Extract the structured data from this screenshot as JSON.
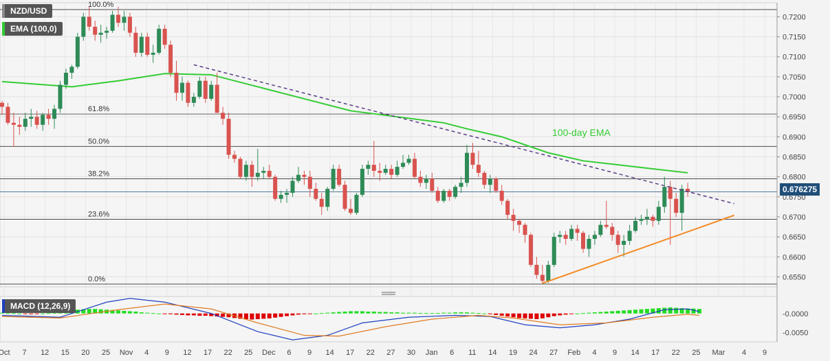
{
  "labels": {
    "pair": "NZD/USD",
    "ema_legend": "EMA (100,0)",
    "macd_legend": "MACD (12,26,9)",
    "ema_annotation": "100-day EMA",
    "last_price": "0.676275"
  },
  "colors": {
    "background": "#f3f3f3",
    "bull": "#2e8b57",
    "bear": "#d9534f",
    "ema": "#33cc33",
    "trendline_down": "#5a3e85",
    "trendline_up": "#f28c28",
    "fib": "#333333",
    "macd_line": "#1f3fbf",
    "signal_line": "#e07b20",
    "hist_pos": "#22dd22",
    "hist_neg": "#dd0000",
    "price_tag": "#1f4e79"
  },
  "chart_data": {
    "type": "candlestick",
    "symbol": "NZD/USD",
    "timeframe": "daily",
    "y_range": [
      0.6525,
      0.7235
    ],
    "y_ticks": [
      "0.7200",
      "0.7150",
      "0.7100",
      "0.7050",
      "0.7000",
      "0.6950",
      "0.6900",
      "0.6850",
      "0.6800",
      "0.6750",
      "0.6700",
      "0.6650",
      "0.6600",
      "0.6550"
    ],
    "x_ticks": [
      "Oct",
      "7",
      "12",
      "15",
      "20",
      "25",
      "Nov",
      "4",
      "9",
      "12",
      "17",
      "22",
      "25",
      "Dec",
      "6",
      "9",
      "14",
      "17",
      "22",
      "27",
      "30",
      "Jan",
      "6",
      "11",
      "14",
      "19",
      "24",
      "27",
      "Feb",
      "4",
      "9",
      "14",
      "17",
      "22",
      "25",
      "Mar",
      "4",
      "9"
    ],
    "fibonacci": [
      {
        "label": "100.0%",
        "price": 0.7218
      },
      {
        "label": "61.8%",
        "price": 0.6957
      },
      {
        "label": "50.0%",
        "price": 0.6876
      },
      {
        "label": "38.2%",
        "price": 0.6795
      },
      {
        "label": "23.6%",
        "price": 0.6694
      },
      {
        "label": "0.0%",
        "price": 0.6532
      }
    ],
    "candles": [
      [
        0.6985,
        0.699,
        0.6955,
        0.6975
      ],
      [
        0.6975,
        0.6985,
        0.693,
        0.6935
      ],
      [
        0.6935,
        0.696,
        0.6875,
        0.693
      ],
      [
        0.693,
        0.695,
        0.6905,
        0.6925
      ],
      [
        0.6925,
        0.696,
        0.6915,
        0.6945
      ],
      [
        0.6945,
        0.697,
        0.6925,
        0.695
      ],
      [
        0.695,
        0.6965,
        0.692,
        0.693
      ],
      [
        0.693,
        0.696,
        0.6915,
        0.6955
      ],
      [
        0.6955,
        0.697,
        0.693,
        0.6945
      ],
      [
        0.6945,
        0.698,
        0.692,
        0.697
      ],
      [
        0.697,
        0.704,
        0.696,
        0.703
      ],
      [
        0.703,
        0.707,
        0.702,
        0.706
      ],
      [
        0.706,
        0.708,
        0.7045,
        0.7075
      ],
      [
        0.7075,
        0.716,
        0.707,
        0.715
      ],
      [
        0.715,
        0.721,
        0.714,
        0.72
      ],
      [
        0.72,
        0.7225,
        0.7165,
        0.7175
      ],
      [
        0.7175,
        0.719,
        0.714,
        0.7155
      ],
      [
        0.7155,
        0.718,
        0.7135,
        0.716
      ],
      [
        0.716,
        0.7175,
        0.7145,
        0.7165
      ],
      [
        0.7165,
        0.7215,
        0.716,
        0.7205
      ],
      [
        0.7205,
        0.7225,
        0.7175,
        0.7185
      ],
      [
        0.7185,
        0.7215,
        0.7165,
        0.72
      ],
      [
        0.72,
        0.721,
        0.715,
        0.716
      ],
      [
        0.716,
        0.7175,
        0.71,
        0.711
      ],
      [
        0.711,
        0.716,
        0.71,
        0.715
      ],
      [
        0.715,
        0.716,
        0.71,
        0.7105
      ],
      [
        0.7105,
        0.713,
        0.7085,
        0.711
      ],
      [
        0.711,
        0.718,
        0.7105,
        0.717
      ],
      [
        0.717,
        0.718,
        0.712,
        0.713
      ],
      [
        0.713,
        0.714,
        0.705,
        0.706
      ],
      [
        0.706,
        0.709,
        0.699,
        0.701
      ],
      [
        0.701,
        0.705,
        0.699,
        0.7035
      ],
      [
        0.7035,
        0.704,
        0.6975,
        0.6985
      ],
      [
        0.6985,
        0.701,
        0.6975,
        0.7
      ],
      [
        0.7,
        0.705,
        0.6995,
        0.704
      ],
      [
        0.704,
        0.705,
        0.6985,
        0.6995
      ],
      [
        0.6995,
        0.704,
        0.699,
        0.703
      ],
      [
        0.703,
        0.706,
        0.696,
        0.696
      ],
      [
        0.696,
        0.6975,
        0.693,
        0.6945
      ],
      [
        0.6945,
        0.696,
        0.6845,
        0.6855
      ],
      [
        0.6855,
        0.6865,
        0.6835,
        0.6845
      ],
      [
        0.6845,
        0.685,
        0.6795,
        0.68
      ],
      [
        0.68,
        0.684,
        0.679,
        0.683
      ],
      [
        0.683,
        0.684,
        0.6775,
        0.68
      ],
      [
        0.68,
        0.687,
        0.679,
        0.681
      ],
      [
        0.681,
        0.6825,
        0.6795,
        0.6815
      ],
      [
        0.6815,
        0.683,
        0.6795,
        0.68
      ],
      [
        0.68,
        0.6805,
        0.674,
        0.6745
      ],
      [
        0.6745,
        0.6765,
        0.6735,
        0.6755
      ],
      [
        0.6755,
        0.677,
        0.6735,
        0.676
      ],
      [
        0.676,
        0.68,
        0.675,
        0.679
      ],
      [
        0.679,
        0.6825,
        0.6785,
        0.6805
      ],
      [
        0.6805,
        0.6815,
        0.678,
        0.68
      ],
      [
        0.68,
        0.6815,
        0.675,
        0.677
      ],
      [
        0.677,
        0.6785,
        0.674,
        0.6745
      ],
      [
        0.6745,
        0.676,
        0.6705,
        0.6725
      ],
      [
        0.6725,
        0.6775,
        0.6715,
        0.677
      ],
      [
        0.677,
        0.683,
        0.6765,
        0.682
      ],
      [
        0.682,
        0.683,
        0.6775,
        0.678
      ],
      [
        0.678,
        0.679,
        0.6715,
        0.672
      ],
      [
        0.672,
        0.6745,
        0.6705,
        0.671
      ],
      [
        0.671,
        0.676,
        0.6705,
        0.6755
      ],
      [
        0.6755,
        0.683,
        0.675,
        0.682
      ],
      [
        0.682,
        0.684,
        0.6805,
        0.683
      ],
      [
        0.683,
        0.689,
        0.68,
        0.6815
      ],
      [
        0.6815,
        0.6835,
        0.679,
        0.681
      ],
      [
        0.681,
        0.683,
        0.6805,
        0.682
      ],
      [
        0.682,
        0.683,
        0.6795,
        0.6805
      ],
      [
        0.6805,
        0.684,
        0.68,
        0.6825
      ],
      [
        0.6825,
        0.6855,
        0.682,
        0.6835
      ],
      [
        0.6835,
        0.6855,
        0.683,
        0.6845
      ],
      [
        0.6845,
        0.686,
        0.6795,
        0.68
      ],
      [
        0.68,
        0.6815,
        0.6775,
        0.6785
      ],
      [
        0.6785,
        0.6805,
        0.677,
        0.6795
      ],
      [
        0.6795,
        0.681,
        0.676,
        0.6765
      ],
      [
        0.6765,
        0.6775,
        0.6735,
        0.674
      ],
      [
        0.674,
        0.677,
        0.6735,
        0.6765
      ],
      [
        0.6765,
        0.677,
        0.674,
        0.675
      ],
      [
        0.675,
        0.678,
        0.6745,
        0.6775
      ],
      [
        0.6775,
        0.68,
        0.676,
        0.6785
      ],
      [
        0.6785,
        0.688,
        0.6775,
        0.686
      ],
      [
        0.686,
        0.6885,
        0.682,
        0.683
      ],
      [
        0.683,
        0.6865,
        0.68,
        0.681
      ],
      [
        0.681,
        0.6815,
        0.677,
        0.678
      ],
      [
        0.678,
        0.6805,
        0.676,
        0.6795
      ],
      [
        0.6795,
        0.68,
        0.676,
        0.6765
      ],
      [
        0.6765,
        0.678,
        0.673,
        0.674
      ],
      [
        0.674,
        0.6745,
        0.6695,
        0.6705
      ],
      [
        0.6705,
        0.672,
        0.6665,
        0.669
      ],
      [
        0.669,
        0.6695,
        0.666,
        0.668
      ],
      [
        0.668,
        0.6685,
        0.6635,
        0.6655
      ],
      [
        0.6655,
        0.666,
        0.6575,
        0.658
      ],
      [
        0.658,
        0.66,
        0.6545,
        0.6555
      ],
      [
        0.6555,
        0.658,
        0.6532,
        0.654
      ],
      [
        0.654,
        0.659,
        0.6535,
        0.658
      ],
      [
        0.658,
        0.666,
        0.6575,
        0.665
      ],
      [
        0.665,
        0.6665,
        0.6635,
        0.6655
      ],
      [
        0.6655,
        0.6665,
        0.663,
        0.6645
      ],
      [
        0.6645,
        0.668,
        0.664,
        0.667
      ],
      [
        0.667,
        0.668,
        0.664,
        0.666
      ],
      [
        0.666,
        0.6665,
        0.661,
        0.662
      ],
      [
        0.662,
        0.6655,
        0.66,
        0.6645
      ],
      [
        0.6645,
        0.6665,
        0.663,
        0.6655
      ],
      [
        0.6655,
        0.669,
        0.665,
        0.668
      ],
      [
        0.668,
        0.674,
        0.667,
        0.6675
      ],
      [
        0.6675,
        0.6685,
        0.664,
        0.6655
      ],
      [
        0.6655,
        0.6665,
        0.661,
        0.663
      ],
      [
        0.663,
        0.6655,
        0.66,
        0.664
      ],
      [
        0.664,
        0.668,
        0.663,
        0.6665
      ],
      [
        0.6665,
        0.67,
        0.666,
        0.669
      ],
      [
        0.669,
        0.6705,
        0.668,
        0.6695
      ],
      [
        0.6695,
        0.672,
        0.668,
        0.67
      ],
      [
        0.67,
        0.6705,
        0.6675,
        0.669
      ],
      [
        0.669,
        0.674,
        0.668,
        0.6725
      ],
      [
        0.6725,
        0.68,
        0.671,
        0.6775
      ],
      [
        0.6775,
        0.679,
        0.663,
        0.6745
      ],
      [
        0.6745,
        0.676,
        0.67,
        0.671
      ],
      [
        0.671,
        0.678,
        0.6665,
        0.677
      ],
      [
        0.677,
        0.6785,
        0.675,
        0.6763
      ]
    ],
    "ema_100": [
      [
        0,
        0.7038
      ],
      [
        12,
        0.7025
      ],
      [
        20,
        0.704
      ],
      [
        28,
        0.7058
      ],
      [
        36,
        0.7055
      ],
      [
        44,
        0.7025
      ],
      [
        52,
        0.6995
      ],
      [
        60,
        0.6965
      ],
      [
        68,
        0.695
      ],
      [
        76,
        0.6935
      ],
      [
        80,
        0.692
      ],
      [
        86,
        0.69
      ],
      [
        90,
        0.688
      ],
      [
        94,
        0.686
      ],
      [
        100,
        0.684
      ],
      [
        106,
        0.683
      ],
      [
        112,
        0.682
      ],
      [
        118,
        0.681
      ]
    ],
    "trendline_down": [
      [
        33,
        0.708
      ],
      [
        126,
        0.6733
      ]
    ],
    "trendline_up": [
      [
        93,
        0.6534
      ],
      [
        126,
        0.6704
      ]
    ],
    "macd": {
      "y_range": [
        -0.0075,
        0.0045
      ],
      "y_ticks": [
        "-0.0000",
        "-0.0050"
      ],
      "macd_line": [
        [
          0,
          -0.0005
        ],
        [
          10,
          -0.001
        ],
        [
          18,
          0.003
        ],
        [
          22,
          0.004
        ],
        [
          28,
          0.003
        ],
        [
          36,
          0.0
        ],
        [
          44,
          -0.0048
        ],
        [
          50,
          -0.007
        ],
        [
          56,
          -0.0058
        ],
        [
          62,
          -0.0025
        ],
        [
          70,
          -0.001
        ],
        [
          78,
          -0.0005
        ],
        [
          84,
          -0.0008
        ],
        [
          90,
          -0.003
        ],
        [
          96,
          -0.0038
        ],
        [
          102,
          -0.003
        ],
        [
          108,
          -0.0015
        ],
        [
          114,
          0.001
        ],
        [
          118,
          0.0012
        ],
        [
          120,
          0.0005
        ]
      ],
      "signal_line": [
        [
          0,
          -0.0008
        ],
        [
          10,
          -0.0012
        ],
        [
          20,
          0.001
        ],
        [
          28,
          0.0025
        ],
        [
          36,
          0.0012
        ],
        [
          44,
          -0.0025
        ],
        [
          52,
          -0.0058
        ],
        [
          58,
          -0.006
        ],
        [
          66,
          -0.0035
        ],
        [
          74,
          -0.0015
        ],
        [
          82,
          -0.0005
        ],
        [
          88,
          -0.0012
        ],
        [
          96,
          -0.003
        ],
        [
          104,
          -0.0025
        ],
        [
          112,
          -0.001
        ],
        [
          118,
          -0.0002
        ],
        [
          120,
          -0.0005
        ]
      ],
      "histogram": [
        0.0002,
        0.0001,
        0.0001,
        0.0,
        -0.0001,
        -0.0002,
        -0.0001,
        0.0,
        0.0001,
        0.0002,
        0.0004,
        0.0006,
        0.0008,
        0.001,
        0.0011,
        0.0012,
        0.0012,
        0.0011,
        0.001,
        0.0009,
        0.0008,
        0.0007,
        0.0006,
        0.0005,
        0.0003,
        0.0002,
        0.0001,
        0.0,
        -0.0001,
        -0.0002,
        -0.0003,
        -0.0004,
        -0.0005,
        -0.0005,
        -0.0006,
        -0.0006,
        -0.0007,
        -0.0008,
        -0.0009,
        -0.001,
        -0.0012,
        -0.0014,
        -0.0015,
        -0.0016,
        -0.0015,
        -0.0014,
        -0.0013,
        -0.0011,
        -0.0009,
        -0.0007,
        -0.0005,
        -0.0003,
        -0.0002,
        -0.0001,
        0.0,
        0.0001,
        0.0002,
        0.0003,
        0.0004,
        0.0005,
        0.0006,
        0.0006,
        0.0006,
        0.0005,
        0.0005,
        0.0004,
        0.0004,
        0.0003,
        0.0003,
        0.0002,
        0.0002,
        0.0002,
        0.0001,
        0.0001,
        0.0001,
        0.0001,
        0.0002,
        0.0002,
        0.0003,
        0.0003,
        0.0003,
        0.0002,
        0.0001,
        0.0,
        -0.0002,
        -0.0004,
        -0.0006,
        -0.0008,
        -0.001,
        -0.0012,
        -0.0013,
        -0.0014,
        -0.0015,
        -0.0013,
        -0.001,
        -0.0007,
        -0.0005,
        -0.0003,
        -0.0001,
        0.0,
        0.0001,
        0.0002,
        0.0003,
        0.0004,
        0.0005,
        0.0006,
        0.0007,
        0.0008,
        0.0009,
        0.001,
        0.0011,
        0.0012,
        0.0013,
        0.0014,
        0.0015,
        0.0016,
        0.0015,
        0.0014,
        0.0013,
        0.0013,
        0.0012
      ]
    }
  }
}
